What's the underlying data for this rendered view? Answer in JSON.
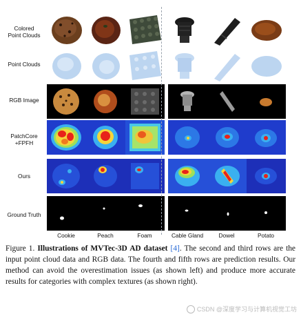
{
  "row_labels": [
    "Colored\nPoint Clouds",
    "Point Clouds",
    "RGB Image",
    "PatchCore\n+FPFH",
    "Ours",
    "Ground Truth"
  ],
  "columns": [
    "Cookie",
    "Peach",
    "Foam",
    "Cable Gland",
    "Dowel",
    "Potato"
  ],
  "caption": {
    "figure_label": "Figure 1.",
    "title": "Illustrations of MVTec-3D AD dataset",
    "citation": "[4]",
    "body": ". The second and third rows are the input point cloud data and RGB data. The fourth and fifth rows are prediction results. Our method can avoid the overestimation issues (as shown left) and produce more accurate results for categories with complex textures (as shown right)."
  },
  "watermark": "CSDN @深度学习与计算机视觉工坊",
  "colors": {
    "cloud_blue": "#b9d3ef",
    "heat_low": "#1d3fd0",
    "heat_high": "#e81e10",
    "citation_link": "#2a6bd6"
  }
}
